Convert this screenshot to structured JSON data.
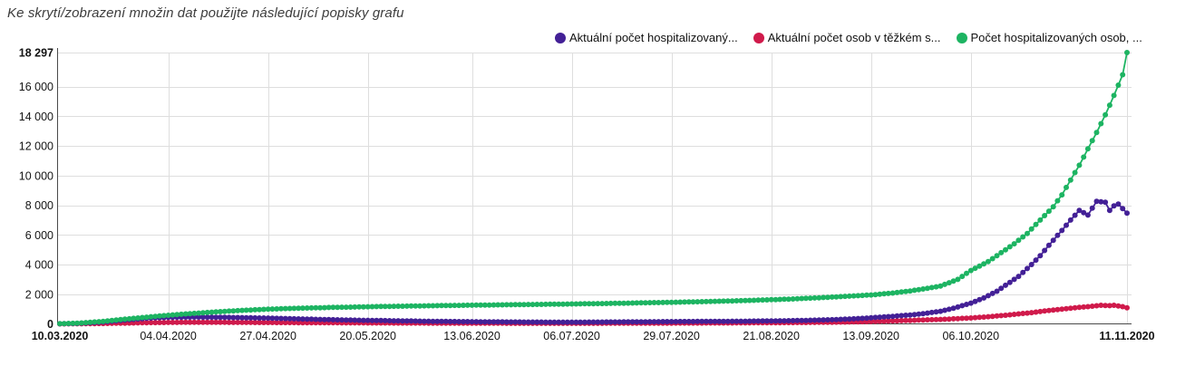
{
  "header": {
    "title": "Ke skrytí/zobrazení množin dat použijte následující popisky grafu"
  },
  "chart_data": {
    "type": "line",
    "subtype": "dotted-line-scatter",
    "start_date": "10.03.2020",
    "end_date": "11.11.2020",
    "x_tick_labels": [
      "10.03.2020",
      "04.04.2020",
      "27.04.2020",
      "20.05.2020",
      "13.06.2020",
      "06.07.2020",
      "29.07.2020",
      "21.08.2020",
      "13.09.2020",
      "06.10.2020",
      "11.11.2020"
    ],
    "x_tick_days": [
      0,
      25,
      48,
      71,
      95,
      118,
      141,
      164,
      187,
      210,
      246
    ],
    "x_total_days": 246,
    "ylim": [
      0,
      18297
    ],
    "y_ticks": [
      {
        "value": 18297,
        "label": "18 297",
        "bold": true
      },
      {
        "value": 16000,
        "label": "16 000",
        "bold": false
      },
      {
        "value": 14000,
        "label": "14 000",
        "bold": false
      },
      {
        "value": 12000,
        "label": "12 000",
        "bold": false
      },
      {
        "value": 10000,
        "label": "10 000",
        "bold": false
      },
      {
        "value": 8000,
        "label": "8 000",
        "bold": false
      },
      {
        "value": 6000,
        "label": "6 000",
        "bold": false
      },
      {
        "value": 4000,
        "label": "4 000",
        "bold": false
      },
      {
        "value": 2000,
        "label": "2 000",
        "bold": false
      },
      {
        "value": 0,
        "label": "0",
        "bold": true
      }
    ],
    "grid": true,
    "legend_position": "top-right",
    "colors": {
      "grid": "#dedede",
      "axis": "#4a4a4a",
      "text": "#141414"
    },
    "series": [
      {
        "label": "Aktuální počet osob v těžkém s...",
        "color": "#d01a4b",
        "legend_order": 2,
        "points_day_value": [
          [
            0,
            1
          ],
          [
            7,
            12
          ],
          [
            14,
            45
          ],
          [
            18,
            70
          ],
          [
            21,
            85
          ],
          [
            25,
            95
          ],
          [
            28,
            102
          ],
          [
            32,
            105
          ],
          [
            35,
            104
          ],
          [
            39,
            100
          ],
          [
            42,
            97
          ],
          [
            46,
            93
          ],
          [
            49,
            89
          ],
          [
            53,
            84
          ],
          [
            56,
            80
          ],
          [
            60,
            76
          ],
          [
            63,
            72
          ],
          [
            67,
            68
          ],
          [
            70,
            65
          ],
          [
            74,
            61
          ],
          [
            77,
            58
          ],
          [
            81,
            55
          ],
          [
            84,
            52
          ],
          [
            88,
            49
          ],
          [
            91,
            47
          ],
          [
            95,
            44
          ],
          [
            98,
            42
          ],
          [
            102,
            40
          ],
          [
            105,
            38
          ],
          [
            109,
            37
          ],
          [
            112,
            36
          ],
          [
            116,
            36
          ],
          [
            119,
            37
          ],
          [
            123,
            38
          ],
          [
            126,
            40
          ],
          [
            130,
            42
          ],
          [
            133,
            45
          ],
          [
            137,
            48
          ],
          [
            140,
            51
          ],
          [
            144,
            54
          ],
          [
            147,
            57
          ],
          [
            151,
            60
          ],
          [
            154,
            63
          ],
          [
            158,
            67
          ],
          [
            161,
            72
          ],
          [
            165,
            78
          ],
          [
            168,
            85
          ],
          [
            172,
            93
          ],
          [
            175,
            103
          ],
          [
            179,
            115
          ],
          [
            182,
            130
          ],
          [
            185,
            148
          ],
          [
            189,
            175
          ],
          [
            192,
            200
          ],
          [
            196,
            235
          ],
          [
            199,
            265
          ],
          [
            203,
            300
          ],
          [
            206,
            340
          ],
          [
            210,
            400
          ],
          [
            213,
            460
          ],
          [
            216,
            530
          ],
          [
            219,
            610
          ],
          [
            221,
            670
          ],
          [
            224,
            760
          ],
          [
            226,
            830
          ],
          [
            228,
            900
          ],
          [
            231,
            990
          ],
          [
            233,
            1050
          ],
          [
            235,
            1110
          ],
          [
            237,
            1160
          ],
          [
            239,
            1220
          ],
          [
            240,
            1250
          ],
          [
            241,
            1240
          ],
          [
            242,
            1230
          ],
          [
            243,
            1250
          ],
          [
            244,
            1210
          ],
          [
            245,
            1160
          ],
          [
            246,
            1090
          ]
        ]
      },
      {
        "label": "Aktuální počet hospitalizovaný...",
        "color": "#432096",
        "legend_order": 1,
        "points_day_value": [
          [
            0,
            5
          ],
          [
            4,
            30
          ],
          [
            7,
            75
          ],
          [
            10,
            130
          ],
          [
            14,
            230
          ],
          [
            18,
            330
          ],
          [
            21,
            400
          ],
          [
            25,
            440
          ],
          [
            28,
            455
          ],
          [
            31,
            460
          ],
          [
            35,
            450
          ],
          [
            39,
            435
          ],
          [
            42,
            420
          ],
          [
            45,
            405
          ],
          [
            48,
            390
          ],
          [
            52,
            360
          ],
          [
            56,
            330
          ],
          [
            60,
            300
          ],
          [
            63,
            280
          ],
          [
            67,
            255
          ],
          [
            70,
            240
          ],
          [
            74,
            225
          ],
          [
            77,
            210
          ],
          [
            81,
            195
          ],
          [
            84,
            180
          ],
          [
            88,
            168
          ],
          [
            91,
            158
          ],
          [
            95,
            148
          ],
          [
            98,
            140
          ],
          [
            102,
            132
          ],
          [
            105,
            127
          ],
          [
            109,
            122
          ],
          [
            112,
            118
          ],
          [
            116,
            116
          ],
          [
            119,
            117
          ],
          [
            123,
            120
          ],
          [
            126,
            126
          ],
          [
            130,
            132
          ],
          [
            133,
            139
          ],
          [
            137,
            146
          ],
          [
            140,
            152
          ],
          [
            144,
            158
          ],
          [
            147,
            163
          ],
          [
            151,
            168
          ],
          [
            154,
            173
          ],
          [
            158,
            180
          ],
          [
            161,
            190
          ],
          [
            165,
            202
          ],
          [
            168,
            215
          ],
          [
            172,
            235
          ],
          [
            175,
            260
          ],
          [
            179,
            290
          ],
          [
            182,
            330
          ],
          [
            185,
            375
          ],
          [
            189,
            450
          ],
          [
            192,
            510
          ],
          [
            196,
            600
          ],
          [
            199,
            690
          ],
          [
            203,
            850
          ],
          [
            206,
            1050
          ],
          [
            210,
            1400
          ],
          [
            213,
            1750
          ],
          [
            216,
            2200
          ],
          [
            219,
            2800
          ],
          [
            221,
            3200
          ],
          [
            224,
            4000
          ],
          [
            226,
            4600
          ],
          [
            228,
            5300
          ],
          [
            231,
            6300
          ],
          [
            233,
            7000
          ],
          [
            235,
            7650
          ],
          [
            237,
            7340
          ],
          [
            239,
            8260
          ],
          [
            241,
            8200
          ],
          [
            242,
            7650
          ],
          [
            243,
            7960
          ],
          [
            244,
            8080
          ],
          [
            245,
            7770
          ],
          [
            246,
            7470
          ]
        ]
      },
      {
        "label": "Počet hospitalizovaných osob, ...",
        "color": "#1db462",
        "legend_order": 3,
        "max_value_label": "18 297",
        "points_day_value": [
          [
            0,
            15
          ],
          [
            4,
            40
          ],
          [
            7,
            105
          ],
          [
            10,
            170
          ],
          [
            14,
            290
          ],
          [
            18,
            400
          ],
          [
            21,
            480
          ],
          [
            25,
            580
          ],
          [
            28,
            650
          ],
          [
            32,
            730
          ],
          [
            35,
            790
          ],
          [
            39,
            860
          ],
          [
            42,
            910
          ],
          [
            45,
            950
          ],
          [
            48,
            990
          ],
          [
            52,
            1030
          ],
          [
            56,
            1060
          ],
          [
            63,
            1110
          ],
          [
            70,
            1150
          ],
          [
            77,
            1185
          ],
          [
            84,
            1215
          ],
          [
            91,
            1245
          ],
          [
            98,
            1270
          ],
          [
            105,
            1295
          ],
          [
            112,
            1320
          ],
          [
            119,
            1345
          ],
          [
            126,
            1375
          ],
          [
            133,
            1410
          ],
          [
            140,
            1450
          ],
          [
            147,
            1490
          ],
          [
            154,
            1540
          ],
          [
            161,
            1600
          ],
          [
            168,
            1670
          ],
          [
            175,
            1760
          ],
          [
            182,
            1870
          ],
          [
            187,
            1950
          ],
          [
            192,
            2080
          ],
          [
            196,
            2220
          ],
          [
            200,
            2400
          ],
          [
            203,
            2550
          ],
          [
            207,
            3000
          ],
          [
            210,
            3600
          ],
          [
            214,
            4200
          ],
          [
            217,
            4800
          ],
          [
            220,
            5400
          ],
          [
            223,
            6100
          ],
          [
            226,
            7000
          ],
          [
            229,
            7900
          ],
          [
            231,
            8700
          ],
          [
            233,
            9700
          ],
          [
            235,
            10700
          ],
          [
            237,
            11800
          ],
          [
            239,
            12900
          ],
          [
            241,
            14100
          ],
          [
            243,
            15400
          ],
          [
            244,
            16100
          ],
          [
            245,
            16800
          ],
          [
            246,
            18297
          ]
        ]
      }
    ]
  }
}
